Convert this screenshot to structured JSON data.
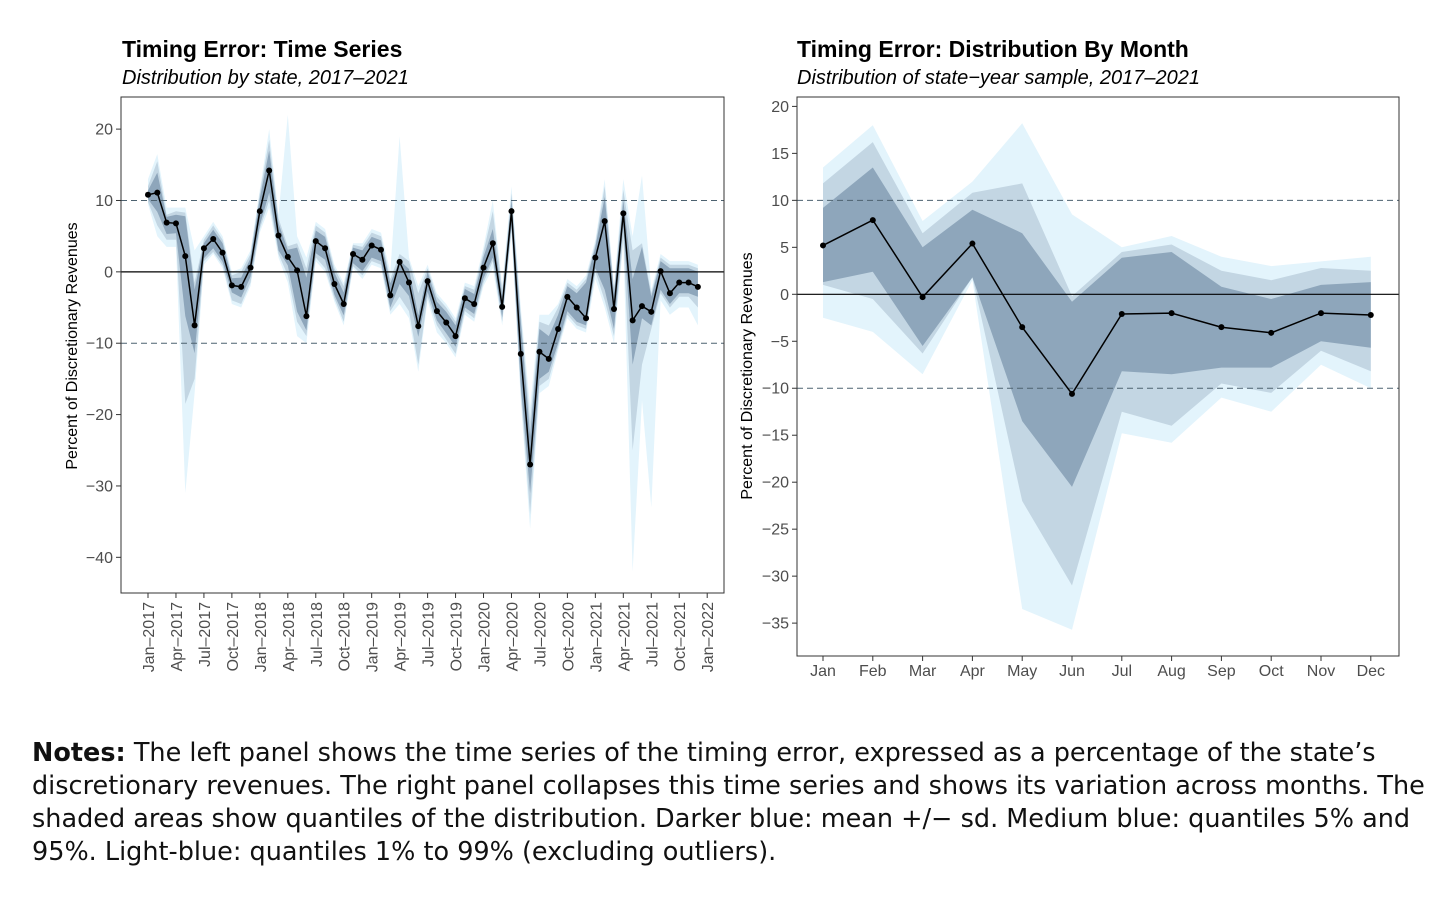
{
  "colors": {
    "light": "#e3f4fc",
    "medium": "#c3d6e3",
    "dark": "#8ea6bb",
    "line": "#000000",
    "dashed": "#4d6270",
    "axis": "#4d4d4d"
  },
  "left": {
    "title": "Timing Error: Time Series",
    "subtitle": "Distribution by state, 2017–2021",
    "ylabel": "Percent of Discretionary Revenues",
    "ylim": [
      -45,
      24.5
    ],
    "yticks": [
      20,
      10,
      0,
      -10,
      -20,
      -30,
      -40
    ],
    "ytick_labels": [
      "20",
      "10",
      "0",
      "−10",
      "−20",
      "−30",
      "−40"
    ],
    "xticks": [
      "Jan–2017",
      "Apr–2017",
      "Jul–2017",
      "Oct–2017",
      "Jan–2018",
      "Apr–2018",
      "Jul–2018",
      "Oct–2018",
      "Jan–2019",
      "Apr–2019",
      "Jul–2019",
      "Oct–2019",
      "Jan–2020",
      "Apr–2020",
      "Jul–2020",
      "Oct–2020",
      "Jan–2021",
      "Apr–2021",
      "Jul–2021",
      "Oct–2021",
      "Jan–2022"
    ]
  },
  "right": {
    "title": "Timing Error: Distribution By Month",
    "subtitle": "Distribution of state−year sample, 2017–2021",
    "ylabel": "Percent of Discretionary Revenues",
    "ylim": [
      -38.5,
      21
    ],
    "yticks": [
      20,
      15,
      10,
      5,
      0,
      -5,
      -10,
      -15,
      -20,
      -25,
      -30,
      -35
    ],
    "ytick_labels": [
      "20",
      "15",
      "10",
      "5",
      "0",
      "−5",
      "−10",
      "−15",
      "−20",
      "−25",
      "−30",
      "−35"
    ],
    "xticks": [
      "Jan",
      "Feb",
      "Mar",
      "Apr",
      "May",
      "Jun",
      "Jul",
      "Aug",
      "Sep",
      "Oct",
      "Nov",
      "Dec"
    ]
  },
  "chart_data": [
    {
      "type": "line",
      "title": "Timing Error: Time Series",
      "subtitle": "Distribution by state, 2017–2021",
      "ylabel": "Percent of Discretionary Revenues",
      "x_start": "2017-01",
      "ylim": [
        -45,
        24.5
      ],
      "reference_lines": {
        "solid": [
          0
        ],
        "dashed": [
          10,
          -10
        ]
      },
      "mean": [
        10.8,
        11.1,
        6.9,
        6.8,
        2.2,
        -7.5,
        3.3,
        4.6,
        2.7,
        -1.9,
        -2.1,
        0.6,
        8.5,
        14.2,
        5.1,
        2.1,
        0.2,
        -6.2,
        4.3,
        3.3,
        -1.7,
        -4.5,
        2.5,
        1.7,
        3.7,
        3.1,
        -3.3,
        1.4,
        -1.5,
        -7.6,
        -1.3,
        -5.5,
        -7.1,
        -9.0,
        -3.7,
        -4.5,
        0.6,
        4.0,
        -4.9,
        8.5,
        -11.5,
        -27.0,
        -11.2,
        -12.2,
        -8.0,
        -3.5,
        -5.0,
        -6.5,
        2.0,
        7.1,
        -5.2,
        8.2,
        -6.8,
        -4.8,
        -5.6,
        0.1,
        -3.0,
        -1.5,
        -1.5,
        -2.1
      ],
      "sd_band": {
        "lower": [
          10.2,
          8.4,
          5.3,
          5.4,
          -6.2,
          -11.4,
          1.9,
          3.3,
          1.4,
          -2.9,
          -3.6,
          -0.7,
          6.5,
          11.1,
          3.0,
          0.9,
          -5.6,
          -8.2,
          2.6,
          1.7,
          -3.2,
          -6.1,
          1.2,
          0.1,
          2.0,
          1.5,
          -5.0,
          -1.7,
          -3.4,
          -9.1,
          -2.8,
          -6.8,
          -8.6,
          -10.5,
          -5.0,
          -5.9,
          -0.9,
          2.0,
          -6.4,
          6.5,
          -16.0,
          -31.0,
          -15.0,
          -14.0,
          -10.0,
          -5.5,
          -7.0,
          -7.5,
          0.5,
          -2.5,
          -8.0,
          6.5,
          -13.0,
          -6.5,
          -7.5,
          -2.5,
          -4.5,
          -3.0,
          -3.0,
          -3.5
        ],
        "upper": [
          11.4,
          13.9,
          7.7,
          8.0,
          7.8,
          -2.5,
          4.0,
          5.9,
          4.0,
          -0.9,
          -0.8,
          1.9,
          10.3,
          17.0,
          6.8,
          3.1,
          3.4,
          -0.8,
          5.8,
          4.9,
          -0.1,
          -2.9,
          3.4,
          3.0,
          4.9,
          4.4,
          -1.6,
          1.6,
          0.4,
          -6.1,
          0.0,
          -4.2,
          -5.6,
          -7.5,
          -2.4,
          -3.1,
          2.1,
          6.0,
          -3.4,
          10.2,
          -7.0,
          -23.0,
          -8.0,
          -9.0,
          -6.0,
          -2.0,
          -3.0,
          -1.5,
          3.5,
          10.5,
          -3.0,
          10.0,
          -1.0,
          3.5,
          -3.5,
          1.5,
          0.5,
          0.5,
          0.5,
          0.0
        ]
      },
      "q5_q95_band": {
        "lower": [
          9.8,
          6.5,
          4.5,
          4.5,
          -18.5,
          -15.0,
          1.5,
          2.8,
          0.9,
          -4.0,
          -4.5,
          -1.5,
          6.0,
          10.0,
          2.5,
          -0.5,
          -7.0,
          -9.0,
          2.0,
          0.5,
          -3.7,
          -7.0,
          0.8,
          -0.5,
          1.5,
          1.0,
          -5.5,
          -3.5,
          -5.5,
          -13.0,
          -3.5,
          -7.5,
          -9.5,
          -11.5,
          -5.5,
          -6.5,
          -1.5,
          1.5,
          -7.0,
          6.0,
          -17.0,
          -34.0,
          -16.0,
          -15.0,
          -10.5,
          -6.0,
          -7.5,
          -8.0,
          0.0,
          -4.0,
          -9.0,
          5.0,
          -25.0,
          -13.0,
          -8.0,
          -3.0,
          -5.0,
          -3.5,
          -3.5,
          -5.0
        ],
        "upper": [
          12.0,
          15.5,
          8.0,
          8.5,
          8.3,
          -1.5,
          4.5,
          6.5,
          4.5,
          -0.5,
          0.0,
          2.5,
          11.0,
          18.5,
          7.5,
          3.6,
          4.0,
          0.5,
          6.5,
          5.5,
          0.5,
          -2.0,
          3.8,
          3.5,
          5.5,
          5.0,
          -1.0,
          2.5,
          1.5,
          -3.0,
          0.5,
          -3.5,
          -5.0,
          -7.0,
          -2.0,
          -2.5,
          2.8,
          8.5,
          -2.5,
          11.0,
          -6.0,
          -21.0,
          -7.0,
          -7.5,
          -5.0,
          -1.5,
          -2.5,
          -1.0,
          4.0,
          12.0,
          -2.5,
          11.5,
          3.0,
          4.0,
          -3.0,
          2.0,
          1.0,
          1.0,
          1.0,
          0.5
        ]
      },
      "q1_q99_band": {
        "lower": [
          9.5,
          5.0,
          3.5,
          3.5,
          -31.0,
          -17.0,
          1.0,
          2.5,
          0.5,
          -4.5,
          -5.0,
          -2.0,
          5.5,
          9.0,
          2.0,
          -1.5,
          -9.0,
          -10.0,
          1.5,
          0.0,
          -4.2,
          -7.5,
          0.5,
          -1.0,
          1.0,
          0.5,
          -6.0,
          -4.5,
          -6.5,
          -14.0,
          -4.0,
          -8.5,
          -10.0,
          -12.0,
          -6.0,
          -7.0,
          -2.0,
          0.5,
          -7.5,
          5.5,
          -18.0,
          -36.0,
          -17.0,
          -16.0,
          -11.0,
          -6.5,
          -8.0,
          -8.5,
          -1.0,
          -5.0,
          -10.0,
          4.0,
          -42.0,
          -18.0,
          -33.0,
          -4.0,
          -6.0,
          -5.0,
          -5.0,
          -7.5
        ],
        "upper": [
          13.0,
          16.5,
          9.0,
          9.0,
          9.0,
          3.0,
          5.0,
          7.0,
          5.0,
          0.0,
          0.5,
          3.0,
          11.5,
          20.0,
          8.0,
          22.0,
          5.0,
          2.0,
          7.0,
          6.0,
          1.0,
          -1.5,
          4.0,
          4.0,
          6.0,
          5.5,
          0.0,
          19.0,
          2.0,
          -2.0,
          1.0,
          -3.0,
          -4.5,
          -6.5,
          -1.5,
          -2.0,
          3.5,
          10.0,
          -2.0,
          12.0,
          -5.0,
          -19.0,
          -6.0,
          -6.0,
          -4.5,
          -1.0,
          -2.0,
          -0.5,
          4.5,
          13.0,
          -2.0,
          13.0,
          5.0,
          13.5,
          -2.5,
          2.5,
          1.5,
          1.5,
          1.5,
          1.0
        ]
      }
    },
    {
      "type": "line",
      "title": "Timing Error: Distribution By Month",
      "subtitle": "Distribution of state−year sample, 2017–2021",
      "ylabel": "Percent of Discretionary Revenues",
      "categories": [
        "Jan",
        "Feb",
        "Mar",
        "Apr",
        "May",
        "Jun",
        "Jul",
        "Aug",
        "Sep",
        "Oct",
        "Nov",
        "Dec"
      ],
      "ylim": [
        -38.5,
        21
      ],
      "reference_lines": {
        "solid": [
          0
        ],
        "dashed": [
          10,
          -10
        ]
      },
      "mean": [
        5.2,
        7.9,
        -0.3,
        5.4,
        -3.5,
        -10.6,
        -2.1,
        -2.0,
        -3.5,
        -4.1,
        -2.0,
        -2.2
      ],
      "sd_band": {
        "lower": [
          1.3,
          2.4,
          -5.5,
          1.8,
          -13.5,
          -20.5,
          -8.2,
          -8.5,
          -7.8,
          -7.8,
          -5.0,
          -5.7
        ],
        "upper": [
          9.2,
          13.5,
          5.0,
          9.0,
          6.5,
          -0.8,
          3.9,
          4.5,
          0.8,
          -0.5,
          1.0,
          1.3
        ]
      },
      "q5_q95_band": {
        "lower": [
          1.0,
          -0.5,
          -6.3,
          1.8,
          -22.0,
          -31.0,
          -12.5,
          -14.0,
          -9.5,
          -10.5,
          -6.0,
          -8.2
        ],
        "upper": [
          11.8,
          16.2,
          6.5,
          10.8,
          11.8,
          -0.2,
          4.5,
          5.3,
          2.5,
          1.5,
          2.8,
          2.5
        ]
      },
      "q1_q99_band": {
        "lower": [
          -2.5,
          -4.0,
          -8.5,
          1.5,
          -33.5,
          -35.7,
          -14.8,
          -15.8,
          -11.0,
          -12.5,
          -7.5,
          -10.0
        ],
        "upper": [
          13.5,
          18.0,
          7.8,
          12.0,
          18.2,
          8.5,
          5.0,
          6.2,
          4.0,
          3.0,
          3.5,
          4.0
        ]
      }
    }
  ],
  "notes": {
    "label": "Notes:",
    "text": " The left panel shows the time series of the timing error, expressed as a percentage of the state’s discretionary revenues. The right panel collapses this time series and shows its variation across months. The shaded areas show quantiles of the distribution. Darker blue: mean +/− sd. Medium blue: quantiles 5% and 95%. Light-blue: quantiles 1% to 99% (excluding outliers)."
  }
}
